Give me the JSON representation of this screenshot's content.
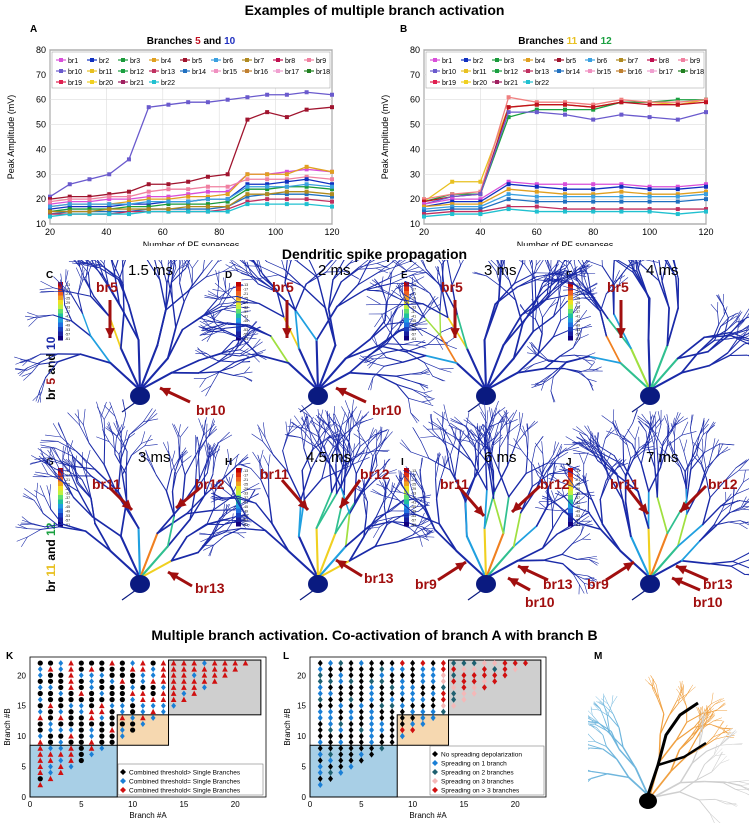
{
  "sections": {
    "top_title": "Examples of multiple branch activation",
    "mid_title": "Dendritic spike propagation",
    "bottom_title": "Multiple branch activation. Co-activation of branch A with branch B"
  },
  "panel_letters": [
    "A",
    "B",
    "C",
    "D",
    "E",
    "F",
    "G",
    "H",
    "I",
    "J",
    "K",
    "L",
    "M"
  ],
  "colors": {
    "dark_red": "#a10f0f",
    "neuron_blue": "#1a2aa8"
  },
  "row_labels": {
    "row1": {
      "prefix": "br ",
      "a": "5",
      "mid": " and ",
      "b": "10"
    },
    "row2": {
      "prefix": "br ",
      "a": "11",
      "mid": " and ",
      "b": "12"
    }
  },
  "time_labels": {
    "row1": [
      "1.5 ms",
      "2 ms",
      "3 ms",
      "4 ms"
    ],
    "row2": [
      "3 ms",
      "4.5 ms",
      "6 ms",
      "7 ms"
    ]
  },
  "arrow_labels": {
    "C": [
      "br5",
      "br10"
    ],
    "D": [
      "br5",
      "br10"
    ],
    "E": [
      "br5"
    ],
    "F": [
      "br5"
    ],
    "G": [
      "br11",
      "br12",
      "br13"
    ],
    "H": [
      "br11",
      "br12",
      "br13"
    ],
    "I": [
      "br11",
      "br12",
      "br13",
      "br9",
      "br10"
    ],
    "J": [
      "br11",
      "br12",
      "br13",
      "br9",
      "br10"
    ]
  },
  "colorbar_ticks": [
    "-13",
    "-17",
    "-21",
    "-25",
    "-29",
    "-33",
    "-37",
    "-41",
    "-45",
    "-49",
    "-53",
    "-57",
    "-61"
  ],
  "chart_data": [
    {
      "type": "line",
      "panel": "A",
      "title_prefix": "Branches ",
      "title_a": "5",
      "title_mid": " and ",
      "title_b": "10",
      "xlabel": "Number of PF synapses",
      "ylabel": "Peak Amplitude (mV)",
      "xlim": [
        20,
        120
      ],
      "ylim": [
        10,
        80
      ],
      "xticks": [
        20,
        40,
        60,
        80,
        100,
        120
      ],
      "yticks": [
        10,
        20,
        30,
        40,
        50,
        60,
        70,
        80
      ],
      "grid": true,
      "legend": [
        "br1",
        "br2",
        "br3",
        "br4",
        "br5",
        "br6",
        "br7",
        "br8",
        "br9",
        "br10",
        "br11",
        "br12",
        "br13",
        "br14",
        "br15",
        "br16",
        "br17",
        "br18",
        "br19",
        "br20",
        "br21",
        "br22"
      ],
      "x": [
        20,
        27,
        34,
        41,
        48,
        55,
        62,
        69,
        76,
        83,
        90,
        97,
        104,
        111,
        120
      ],
      "series": [
        {
          "name": "br10",
          "color": "#6a5acd",
          "values": [
            21,
            26,
            28,
            30,
            36,
            57,
            58,
            59,
            59,
            60,
            61,
            62,
            62,
            63,
            62
          ]
        },
        {
          "name": "br5",
          "color": "#a0142e",
          "values": [
            20,
            21,
            21,
            22,
            23,
            26,
            26,
            27,
            29,
            30,
            52,
            55,
            53,
            56,
            57
          ]
        },
        {
          "name": "br1",
          "color": "#d94fd9",
          "values": [
            18,
            19,
            19,
            20,
            20,
            21,
            21,
            22,
            23,
            23,
            30,
            30,
            31,
            32,
            31
          ]
        },
        {
          "name": "br4",
          "color": "#e0a020",
          "values": [
            17,
            18,
            18,
            18,
            19,
            20,
            20,
            21,
            21,
            22,
            30,
            30,
            30,
            33,
            31
          ]
        },
        {
          "name": "br9",
          "color": "#f080a0",
          "values": [
            19,
            20,
            20,
            21,
            21,
            23,
            24,
            24,
            25,
            25,
            28,
            28,
            28,
            29,
            28
          ]
        },
        {
          "name": "br2",
          "color": "#1030c0",
          "values": [
            16,
            17,
            17,
            17,
            18,
            18,
            19,
            19,
            20,
            20,
            26,
            26,
            27,
            28,
            26
          ]
        },
        {
          "name": "br3",
          "color": "#1a9a3a",
          "values": [
            15,
            16,
            16,
            16,
            17,
            17,
            18,
            18,
            18,
            19,
            24,
            24,
            25,
            25,
            24
          ]
        },
        {
          "name": "br6",
          "color": "#3aa0e0",
          "values": [
            17,
            18,
            18,
            18,
            18,
            19,
            19,
            19,
            20,
            20,
            25,
            25,
            25,
            26,
            25
          ]
        },
        {
          "name": "br14",
          "color": "#2070c0",
          "values": [
            14,
            15,
            15,
            15,
            15,
            16,
            16,
            16,
            16,
            17,
            21,
            22,
            22,
            22,
            21
          ]
        },
        {
          "name": "br13",
          "color": "#c03060",
          "values": [
            14,
            14,
            14,
            14,
            15,
            15,
            15,
            15,
            15,
            16,
            19,
            20,
            20,
            20,
            19
          ]
        },
        {
          "name": "br22",
          "color": "#20c0d0",
          "values": [
            13,
            14,
            14,
            14,
            14,
            15,
            15,
            15,
            15,
            15,
            18,
            18,
            18,
            18,
            17
          ]
        },
        {
          "name": "br7",
          "color": "#b08a20",
          "values": [
            15,
            15,
            15,
            16,
            16,
            16,
            16,
            17,
            17,
            17,
            22,
            22,
            23,
            23,
            22
          ]
        }
      ]
    },
    {
      "type": "line",
      "panel": "B",
      "title_prefix": "Branches ",
      "title_a": "11",
      "title_mid": " and ",
      "title_b": "12",
      "xlabel": "Number of PF synapses",
      "ylabel": "Peak Amplitude (mV)",
      "xlim": [
        20,
        120
      ],
      "ylim": [
        10,
        80
      ],
      "xticks": [
        20,
        40,
        60,
        80,
        100,
        120
      ],
      "yticks": [
        10,
        20,
        30,
        40,
        50,
        60,
        70,
        80
      ],
      "grid": true,
      "legend": [
        "br1",
        "br2",
        "br3",
        "br4",
        "br5",
        "br6",
        "br7",
        "br8",
        "br9",
        "br10",
        "br11",
        "br12",
        "br13",
        "br14",
        "br15",
        "br16",
        "br17",
        "br18",
        "br19",
        "br20",
        "br21",
        "br22"
      ],
      "x": [
        20,
        30,
        40,
        50,
        60,
        70,
        80,
        90,
        100,
        110,
        120
      ],
      "series": [
        {
          "name": "br11",
          "color": "#e8c020",
          "values": [
            19,
            27,
            27,
            57,
            58,
            58,
            57,
            59,
            59,
            58,
            60
          ]
        },
        {
          "name": "br12",
          "color": "#1aa040",
          "values": [
            19,
            22,
            22,
            53,
            56,
            56,
            56,
            59,
            59,
            60,
            60
          ]
        },
        {
          "name": "br9",
          "color": "#f08080",
          "values": [
            20,
            22,
            23,
            61,
            59,
            59,
            58,
            60,
            59,
            59,
            60
          ]
        },
        {
          "name": "br5",
          "color": "#c01020",
          "values": [
            19,
            21,
            22,
            57,
            58,
            58,
            57,
            59,
            58,
            58,
            59
          ]
        },
        {
          "name": "br10",
          "color": "#6a5acd",
          "values": [
            18,
            21,
            22,
            55,
            55,
            54,
            52,
            54,
            53,
            52,
            55
          ]
        },
        {
          "name": "br1",
          "color": "#d94fd9",
          "values": [
            18,
            20,
            20,
            27,
            26,
            26,
            26,
            26,
            25,
            25,
            26
          ]
        },
        {
          "name": "br2",
          "color": "#1030c0",
          "values": [
            17,
            19,
            19,
            26,
            25,
            24,
            24,
            25,
            24,
            24,
            25
          ]
        },
        {
          "name": "br4",
          "color": "#e0a020",
          "values": [
            17,
            18,
            18,
            24,
            23,
            22,
            22,
            23,
            22,
            22,
            23
          ]
        },
        {
          "name": "br6",
          "color": "#3aa0e0",
          "values": [
            16,
            17,
            17,
            22,
            21,
            21,
            21,
            21,
            21,
            21,
            22
          ]
        },
        {
          "name": "br14",
          "color": "#2070c0",
          "values": [
            15,
            16,
            16,
            20,
            19,
            19,
            19,
            19,
            19,
            19,
            20
          ]
        },
        {
          "name": "br13",
          "color": "#c03060",
          "values": [
            14,
            15,
            15,
            17,
            17,
            16,
            16,
            16,
            16,
            16,
            16
          ]
        },
        {
          "name": "br22",
          "color": "#20c0d0",
          "values": [
            13,
            14,
            14,
            16,
            15,
            15,
            15,
            15,
            15,
            14,
            15
          ]
        }
      ]
    },
    {
      "type": "scatter",
      "panel": "K",
      "xlabel": "Branch #A",
      "ylabel": "Branch #B",
      "xlim": [
        0,
        23
      ],
      "ylim": [
        0,
        23
      ],
      "xticks": [
        0,
        5,
        10,
        15,
        20
      ],
      "yticks": [
        0,
        5,
        10,
        15,
        20
      ],
      "boxes": [
        {
          "x": [
            0,
            8.5
          ],
          "y": [
            0,
            8.5
          ],
          "color": "#a8cfe6"
        },
        {
          "x": [
            8.5,
            13.5
          ],
          "y": [
            8.5,
            13.5
          ],
          "color": "#f6d8b0"
        },
        {
          "x": [
            13.5,
            22.5
          ],
          "y": [
            13.5,
            22.5
          ],
          "color": "#cfcfcf"
        }
      ],
      "legend": [
        {
          "label": "Combined threshold> Single Branches",
          "color": "#000000",
          "marker": "circle"
        },
        {
          "label": "Combined threshold= Single Branches",
          "color": "#1a7fd6",
          "marker": "diamond"
        },
        {
          "label": "Combined threshold< Single Branches",
          "color": "#d01010",
          "marker": "triangle"
        }
      ]
    },
    {
      "type": "scatter",
      "panel": "L",
      "xlabel": "Branch #A",
      "ylabel": "Branch #B",
      "xlim": [
        0,
        23
      ],
      "ylim": [
        0,
        23
      ],
      "xticks": [
        0,
        5,
        10,
        15,
        20
      ],
      "yticks": [
        0,
        5,
        10,
        15,
        20
      ],
      "boxes": [
        {
          "x": [
            0,
            8.5
          ],
          "y": [
            0,
            8.5
          ],
          "color": "#a8cfe6"
        },
        {
          "x": [
            8.5,
            13.5
          ],
          "y": [
            8.5,
            13.5
          ],
          "color": "#f6d8b0"
        },
        {
          "x": [
            13.5,
            22.5
          ],
          "y": [
            13.5,
            22.5
          ],
          "color": "#cfcfcf"
        }
      ],
      "legend": [
        {
          "label": "No spreading depolarization",
          "color": "#000000"
        },
        {
          "label": "Spreading on 1 branch",
          "color": "#1a7fd6"
        },
        {
          "label": "Spreading on 2 branches",
          "color": "#1e6070"
        },
        {
          "label": "Spreading on 3 branches",
          "color": "#f4b8b8"
        },
        {
          "label": "Spreading on > 3 branches",
          "color": "#d01010"
        }
      ]
    }
  ]
}
